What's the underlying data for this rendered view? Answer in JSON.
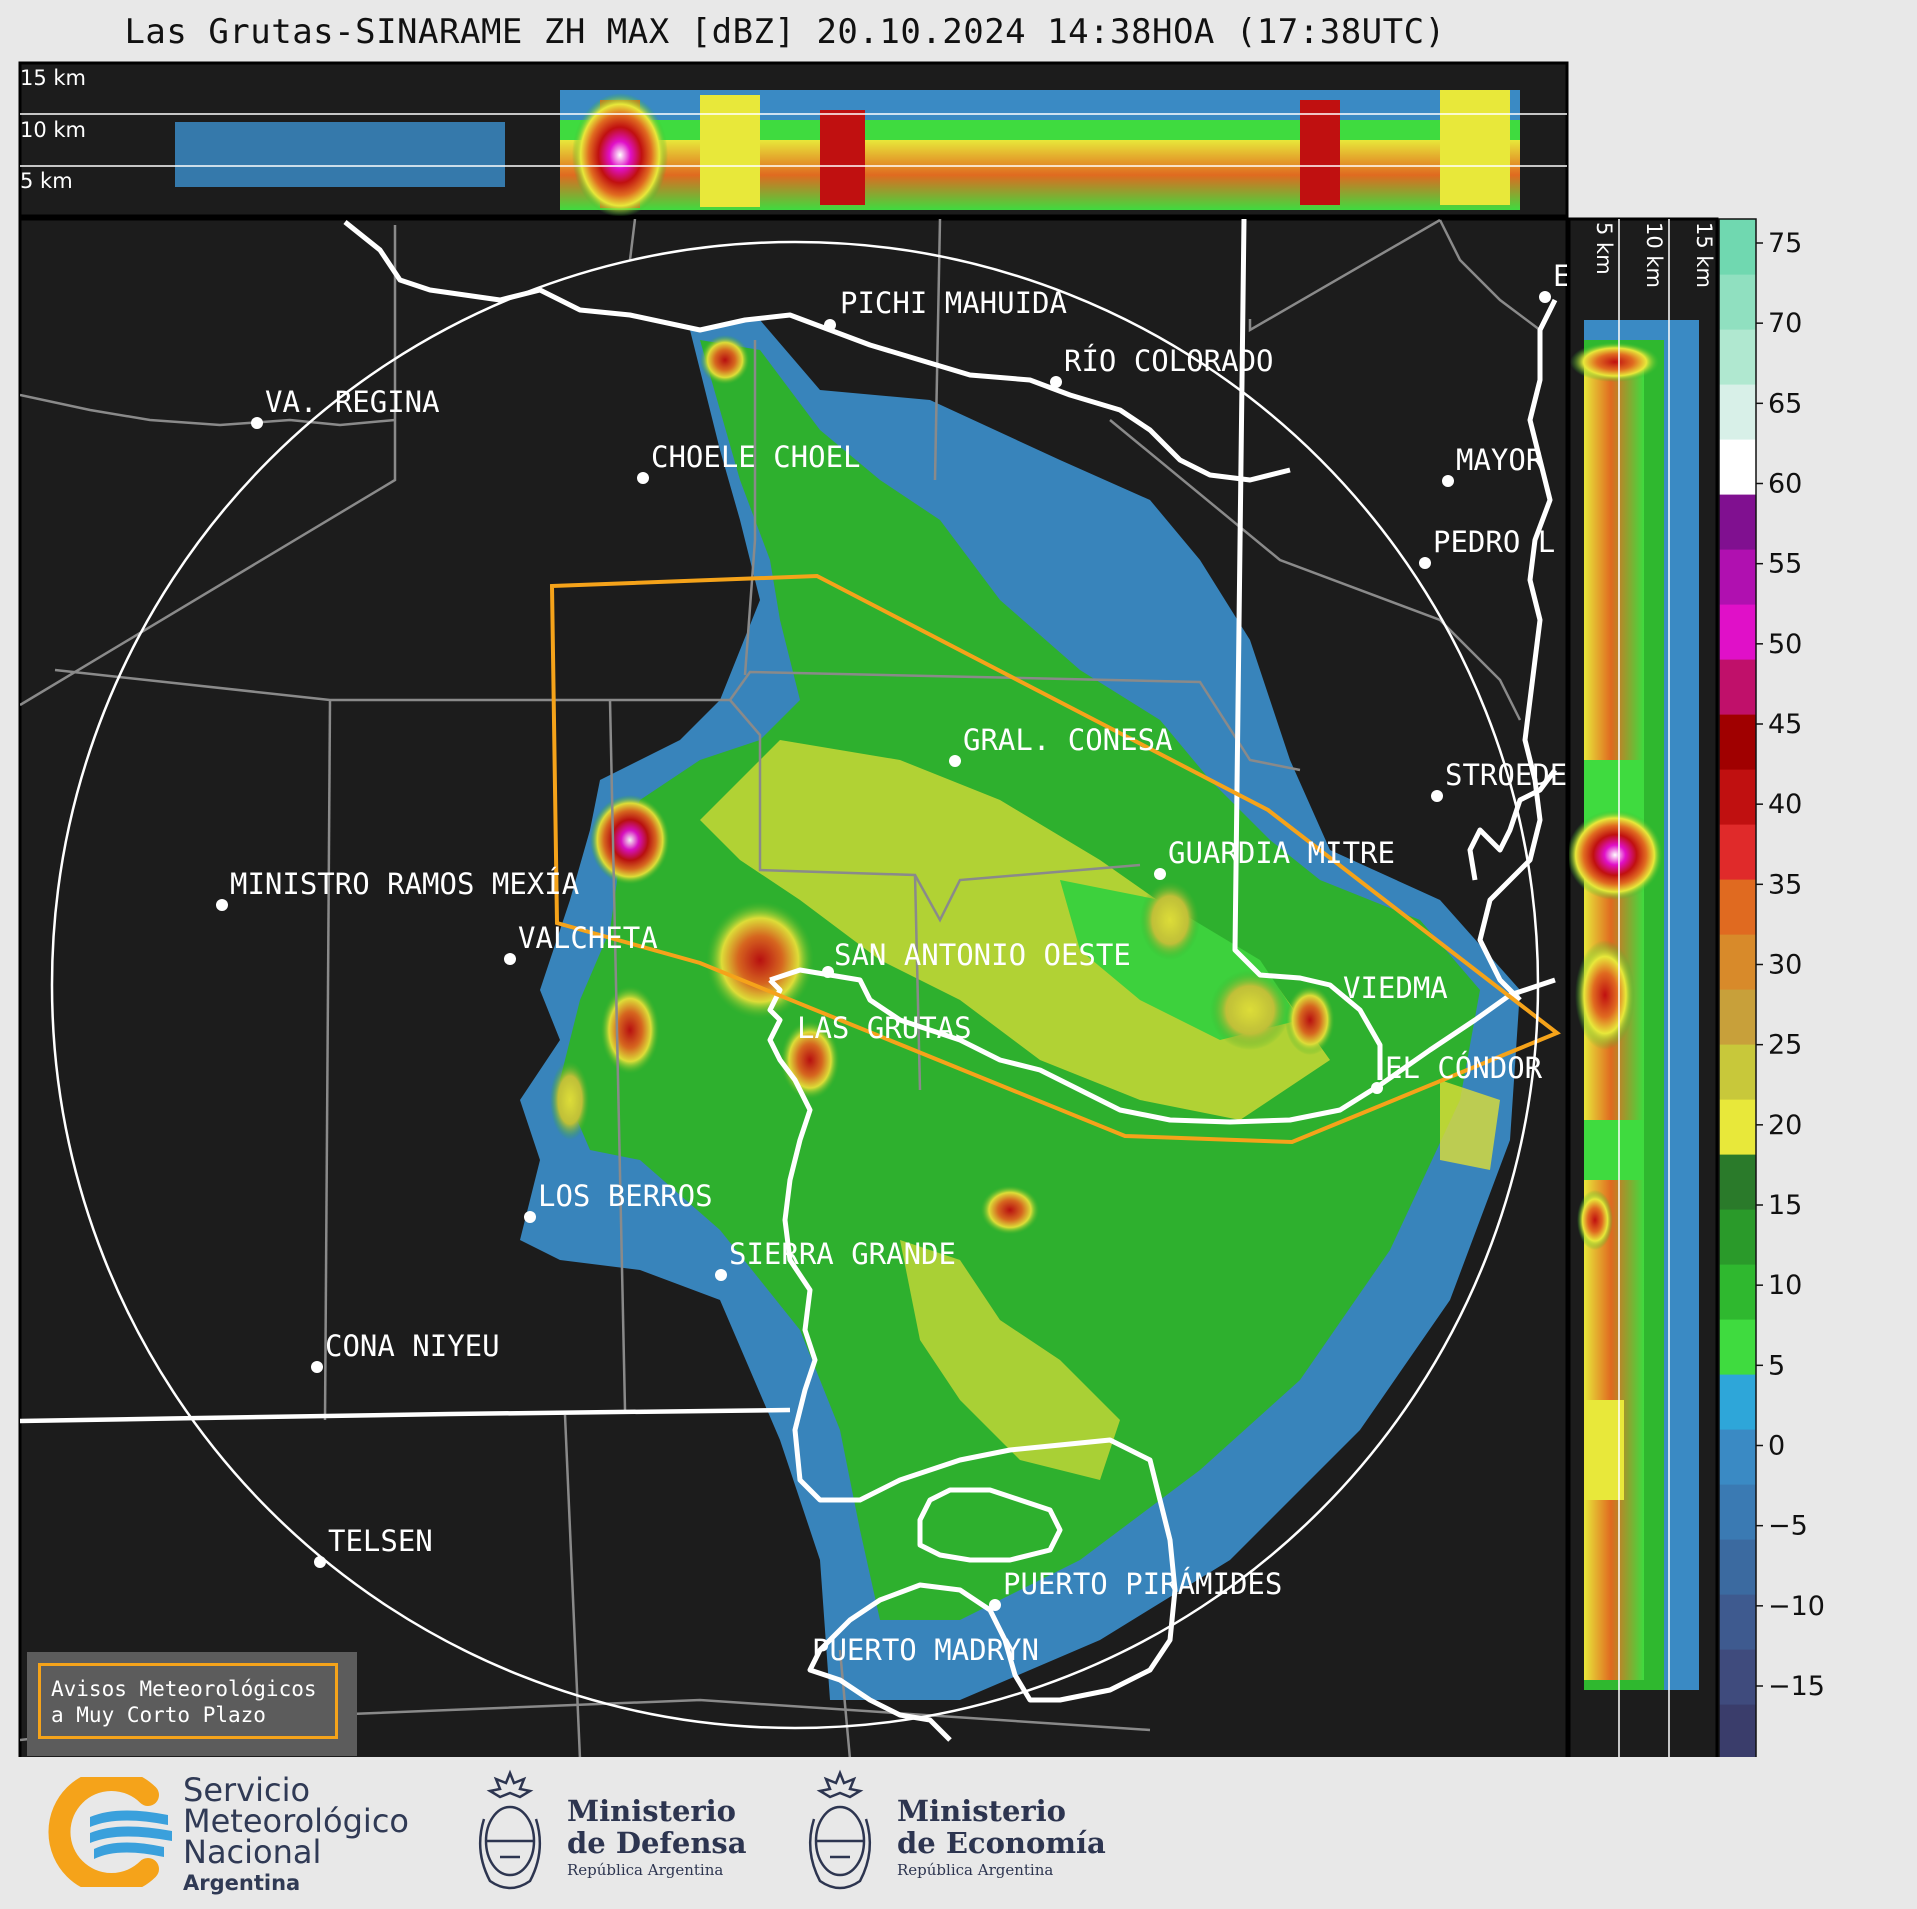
{
  "title": "Las Grutas-SINARAME ZH MAX [dBZ] 20.10.2024 14:38HOA (17:38UTC)",
  "top_panel": {
    "km_labels": [
      "15 km",
      "10 km",
      "5 km"
    ]
  },
  "side_panel": {
    "km_labels": [
      "5 km",
      "10 km",
      "15 km"
    ]
  },
  "colorbar": {
    "ticks": [
      "75",
      "70",
      "65",
      "60",
      "55",
      "50",
      "45",
      "40",
      "35",
      "30",
      "25",
      "20",
      "15",
      "10",
      "5",
      "0",
      "−5",
      "−10",
      "−15"
    ],
    "colors": [
      "#3a3d6b",
      "#3f4b7d",
      "#3e5a8f",
      "#3b6aa0",
      "#3a7ab3",
      "#3a8ac4",
      "#2ea6d9",
      "#3fdb3f",
      "#2fb82f",
      "#2a9a2a",
      "#2a7a2a",
      "#e8e83a",
      "#c8c83a",
      "#c8a03a",
      "#d88a2a",
      "#e06a20",
      "#e02a2a",
      "#c01010",
      "#a00000",
      "#c0106a",
      "#e010c8",
      "#b010b0",
      "#801090",
      "#ffffff",
      "#d8f0e8",
      "#b0e8d0",
      "#90e0c0",
      "#70d8b0"
    ]
  },
  "cities": [
    {
      "name": "PICHI MAHUIDA"
    },
    {
      "name": "RÍO COLORADO"
    },
    {
      "name": "VA. REGINA"
    },
    {
      "name": "CHOELE CHOEL"
    },
    {
      "name": "MAYOR"
    },
    {
      "name": "PEDRO L"
    },
    {
      "name": "GRAL. CONESA"
    },
    {
      "name": "STROEDE"
    },
    {
      "name": "GUARDIA MITRE"
    },
    {
      "name": "MINISTRO RAMOS MEXÍA"
    },
    {
      "name": "VALCHETA"
    },
    {
      "name": "SAN ANTONIO OESTE"
    },
    {
      "name": "VIEDMA"
    },
    {
      "name": "LAS GRUTAS"
    },
    {
      "name": "EL CÓNDOR"
    },
    {
      "name": "LOS BERROS"
    },
    {
      "name": "SIERRA GRANDE"
    },
    {
      "name": "CONA NIYEU"
    },
    {
      "name": "TELSEN"
    },
    {
      "name": "PUERTO PIRÁMIDES"
    },
    {
      "name": "PUERTO MADRYN"
    },
    {
      "name": "E"
    }
  ],
  "legend": {
    "line1": "Avisos Meteorológicos",
    "line2": "a Muy Corto Plazo",
    "warning_color": "#f5a31a"
  },
  "footer": {
    "smn": {
      "line1": "Servicio",
      "line2": "Meteorológico",
      "line3": "Nacional",
      "line4": "Argentina"
    },
    "defensa": {
      "line1": "Ministerio",
      "line2": "de Defensa",
      "line3": "República Argentina"
    },
    "economia": {
      "line1": "Ministerio",
      "line2": "de Economía",
      "line3": "República Argentina"
    }
  }
}
